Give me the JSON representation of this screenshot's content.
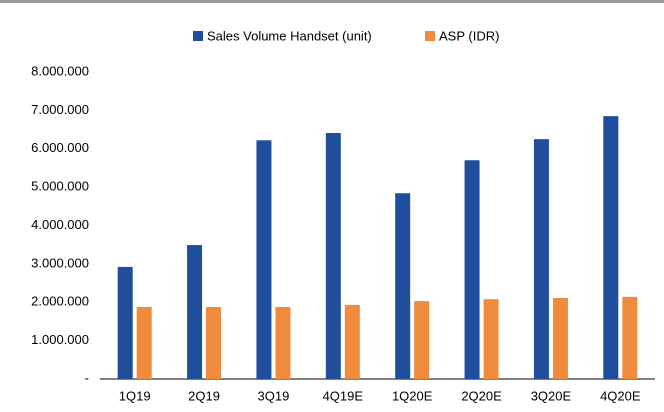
{
  "chart_data": {
    "type": "bar",
    "categories": [
      "1Q19",
      "2Q19",
      "3Q19",
      "4Q19E",
      "1Q20E",
      "2Q20E",
      "3Q20E",
      "4Q20E"
    ],
    "series": [
      {
        "name": "Sales Volume Handset (unit)",
        "color": "#1f4e9c",
        "values": [
          2920000,
          3490000,
          6220000,
          6410000,
          4840000,
          5700000,
          6250000,
          6850000
        ]
      },
      {
        "name": "ASP (IDR)",
        "color": "#f08a3c",
        "values": [
          1875000,
          1875000,
          1875000,
          1930000,
          2030000,
          2080000,
          2110000,
          2140000
        ]
      }
    ],
    "ylim": [
      0,
      8000000
    ],
    "yticks": [
      {
        "value": 0,
        "label": "-"
      },
      {
        "value": 1000000,
        "label": "1.000.000"
      },
      {
        "value": 2000000,
        "label": "2.000.000"
      },
      {
        "value": 3000000,
        "label": "3.000.000"
      },
      {
        "value": 4000000,
        "label": "4.000.000"
      },
      {
        "value": 5000000,
        "label": "5.000.000"
      },
      {
        "value": 6000000,
        "label": "6.000.000"
      },
      {
        "value": 7000000,
        "label": "7.000.000"
      },
      {
        "value": 8000000,
        "label": "8.000.000"
      }
    ],
    "grid": false,
    "legend": "top"
  }
}
